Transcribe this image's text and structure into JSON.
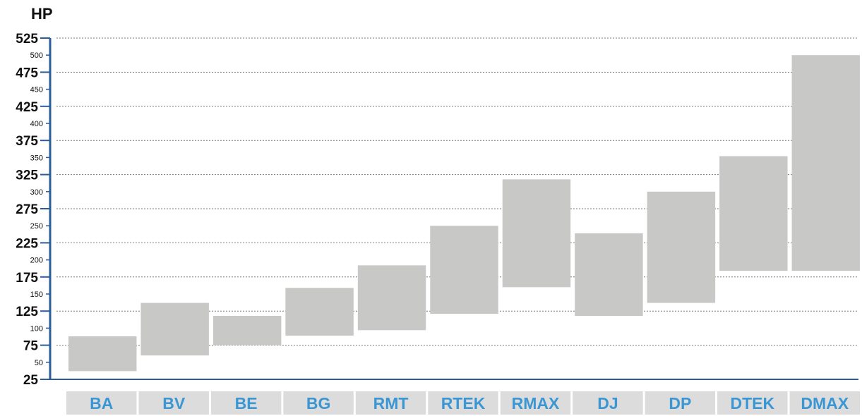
{
  "chart_data": {
    "type": "bar",
    "subtype": "floating-range",
    "ylabel": "HP",
    "xlabel": "",
    "title": "",
    "ylim": [
      25,
      525
    ],
    "major_ticks": [
      "525",
      "475",
      "425",
      "375",
      "325",
      "275",
      "225",
      "175",
      "125",
      "75",
      "25"
    ],
    "minor_ticks": [
      "500",
      "450",
      "400",
      "350",
      "300",
      "250",
      "200",
      "150",
      "100",
      "50"
    ],
    "grid": true,
    "legend": "none",
    "categories": [
      "BA",
      "BV",
      "BE",
      "BG",
      "RMT",
      "RTEK",
      "RMAX",
      "DJ",
      "DP",
      "DTEK",
      "DMAX"
    ],
    "ranges": [
      [
        37,
        88
      ],
      [
        60,
        137
      ],
      [
        75,
        118
      ],
      [
        89,
        159
      ],
      [
        97,
        192
      ],
      [
        121,
        250
      ],
      [
        160,
        318
      ],
      [
        118,
        239
      ],
      [
        137,
        300
      ],
      [
        184,
        352
      ],
      [
        184,
        500
      ]
    ],
    "colors": {
      "bar": "#c8c8c7",
      "axis": "#2b5c9c",
      "grid": "#777777",
      "category_bg": "#dcdcdc",
      "category_text": "#3a97d3"
    }
  }
}
